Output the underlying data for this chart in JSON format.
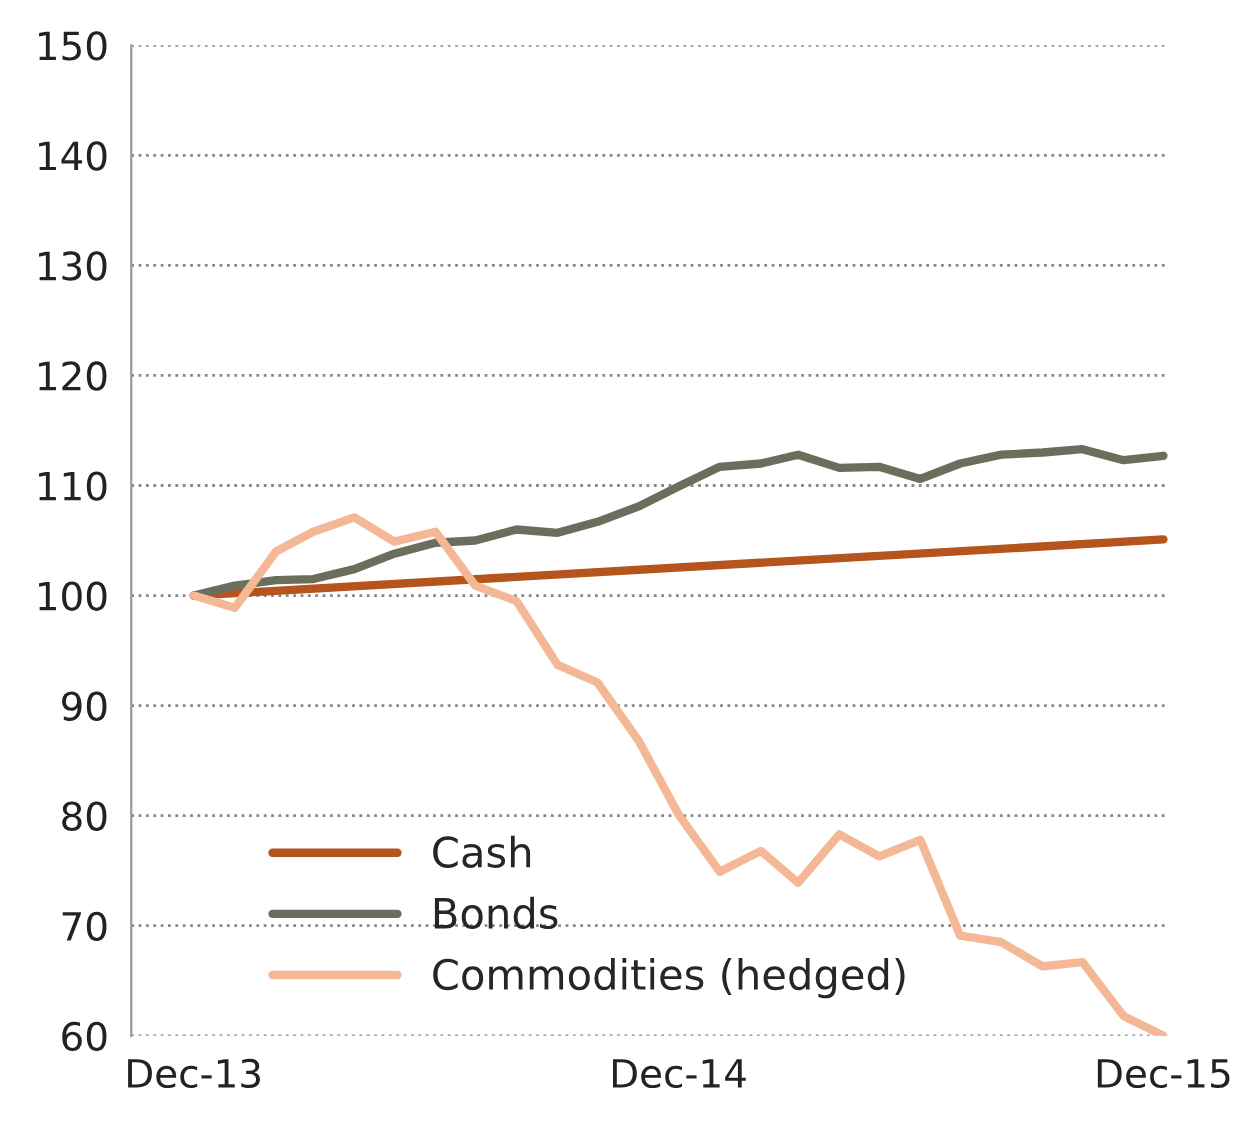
{
  "chart_data": {
    "type": "line",
    "x": [
      "2013-12",
      "2014-01",
      "2014-02",
      "2014-03",
      "2014-04",
      "2014-05",
      "2014-06",
      "2014-07",
      "2014-08",
      "2014-09",
      "2014-10",
      "2014-11",
      "2014-12",
      "2015-01",
      "2015-02",
      "2015-03",
      "2015-04",
      "2015-05",
      "2015-06",
      "2015-07",
      "2015-08",
      "2015-09",
      "2015-10",
      "2015-11",
      "2015-12"
    ],
    "series": [
      {
        "name": "Cash",
        "color": "#b5541c",
        "x": [
          "2013-12",
          "2015-12"
        ],
        "values": [
          100,
          105.1
        ]
      },
      {
        "name": "Bonds",
        "color": "#6b6e5d",
        "values": [
          100,
          100.9,
          101.4,
          101.5,
          102.4,
          103.8,
          104.8,
          105.0,
          106.0,
          105.7,
          106.7,
          108.1,
          109.9,
          111.7,
          112.0,
          112.8,
          111.6,
          111.7,
          110.6,
          112.0,
          112.8,
          113.0,
          113.3,
          112.3,
          112.7
        ]
      },
      {
        "name": "Commodities (hedged)",
        "color": "#f4b896",
        "values": [
          100,
          98.9,
          104.0,
          105.8,
          107.1,
          104.9,
          105.8,
          100.9,
          99.5,
          93.7,
          92.1,
          86.8,
          80.1,
          74.9,
          76.8,
          73.9,
          78.3,
          76.3,
          77.8,
          69.1,
          68.5,
          66.3,
          66.7,
          61.8,
          60
        ]
      }
    ],
    "xlim": [
      "2013-10-15",
      "2015-12-05"
    ],
    "xticks": [
      {
        "value": "2013-12",
        "label": "Dec-13"
      },
      {
        "value": "2014-12",
        "label": "Dec-14"
      },
      {
        "value": "2015-12",
        "label": "Dec-15"
      }
    ],
    "ylim": [
      60,
      150
    ],
    "yticks": [
      60,
      70,
      80,
      90,
      100,
      110,
      120,
      130,
      140,
      150
    ],
    "grid": "y",
    "legend": "bottom left",
    "marker": "none",
    "line_style": "solid"
  }
}
